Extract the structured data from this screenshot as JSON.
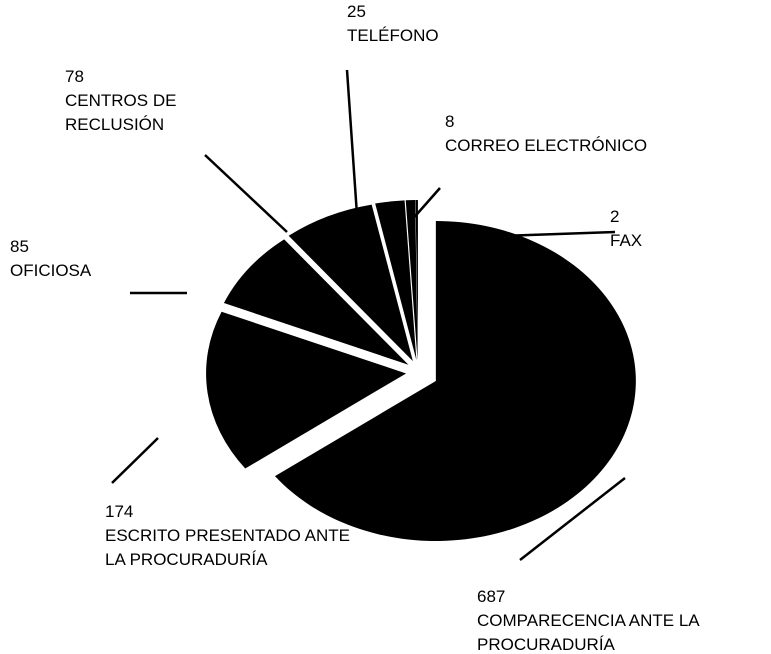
{
  "chart_data": {
    "type": "pie",
    "categories": [
      "COMPARECENCIA ANTE LA PROCURADURÍA",
      "ESCRITO PRESENTADO ANTE LA PROCURADURÍA",
      "OFICIOSA",
      "CENTROS DE RECLUSIÓN",
      "TELÉFONO",
      "CORREO ELECTRÓNICO",
      "FAX"
    ],
    "values": [
      687,
      174,
      85,
      78,
      25,
      8,
      2
    ],
    "color": "#000000"
  }
}
